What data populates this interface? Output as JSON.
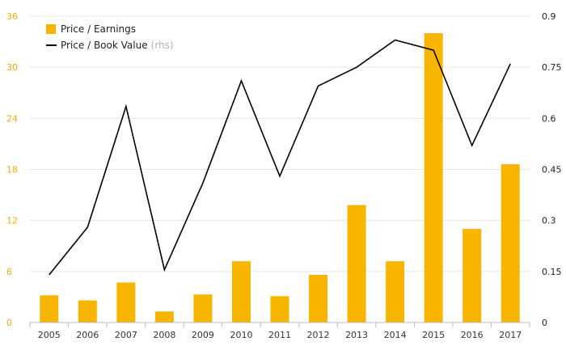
{
  "chart_data": {
    "type": "bar",
    "categories": [
      "2005",
      "2006",
      "2007",
      "2008",
      "2009",
      "2010",
      "2011",
      "2012",
      "2013",
      "2014",
      "2015",
      "2016",
      "2017"
    ],
    "series": [
      {
        "name": "Price / Earnings",
        "type": "bar",
        "axis": "left",
        "color": "#f7b500",
        "values": [
          3.2,
          2.6,
          4.7,
          1.3,
          3.3,
          7.2,
          3.1,
          5.6,
          13.8,
          7.2,
          34.0,
          11.0,
          18.6
        ]
      },
      {
        "name": "Price / Book Value",
        "type": "line",
        "axis": "right",
        "color": "#000000",
        "values": [
          0.14,
          0.28,
          0.635,
          0.155,
          0.41,
          0.71,
          0.43,
          0.695,
          0.75,
          0.83,
          0.8,
          0.52,
          0.76
        ]
      }
    ],
    "yleft": {
      "min": 0,
      "max": 36,
      "ticks": [
        "0",
        "6",
        "12",
        "18",
        "24",
        "30",
        "36"
      ]
    },
    "yright": {
      "min": 0,
      "max": 0.9,
      "ticks": [
        "0",
        "0.15",
        "0.3",
        "0.45",
        "0.6",
        "0.75",
        "0.9"
      ]
    },
    "legend": {
      "position": "top-left",
      "items": [
        {
          "label": "Price / Earnings",
          "suffix": "",
          "marker": "box"
        },
        {
          "label": "Price / Book Value",
          "suffix": "(rhs)",
          "marker": "line"
        }
      ]
    },
    "grid": true
  }
}
